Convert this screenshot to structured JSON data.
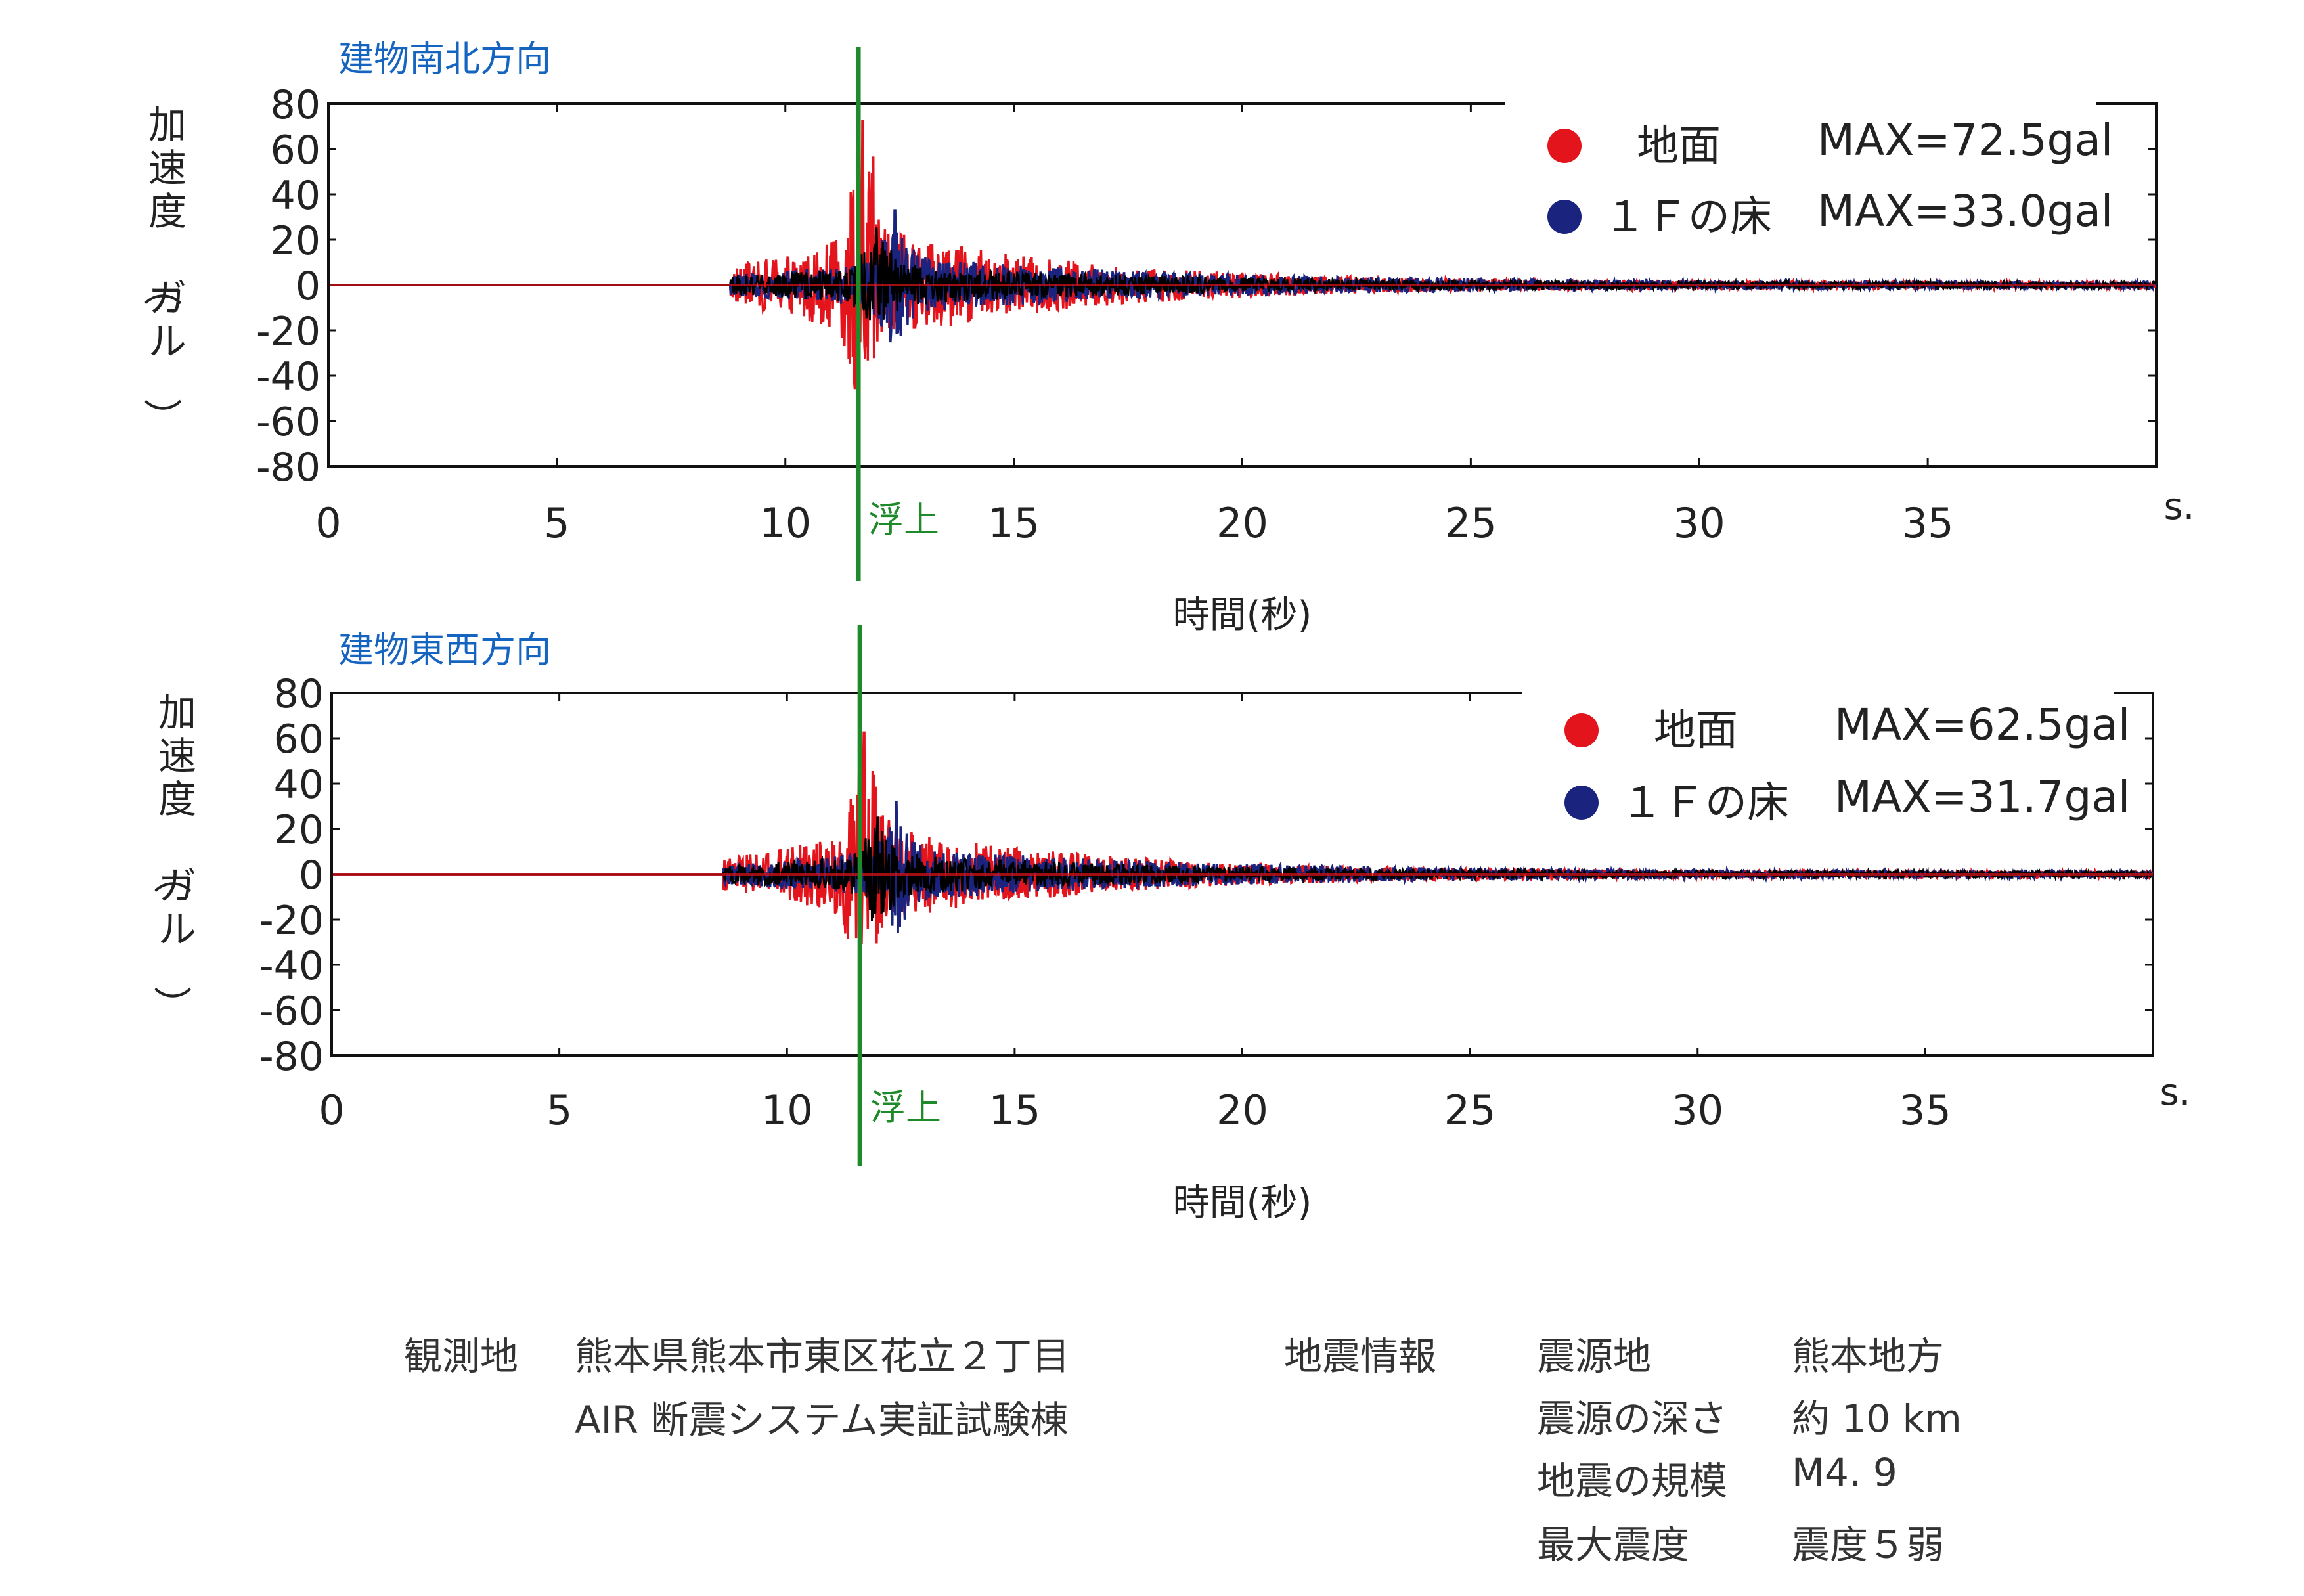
{
  "chart_data": [
    {
      "type": "line",
      "title": "建物南北方向",
      "xlabel": "時間(秒)",
      "ylabel": "加速度（ガル）",
      "x_unit": "s.",
      "xlim": [
        0,
        40
      ],
      "ylim": [
        -80,
        80
      ],
      "xticks": [
        0,
        5,
        10,
        15,
        20,
        25,
        30,
        35
      ],
      "yticks": [
        80,
        60,
        40,
        20,
        0,
        -20,
        -40,
        -60,
        -80
      ],
      "grid": false,
      "legend_position": "top-right",
      "annotation": {
        "x": 11.6,
        "label": "浮上",
        "color": "#1f8a2a"
      },
      "series": [
        {
          "name": "地面",
          "color": "#e3141b",
          "max_label": "MAX=72.5gal",
          "max": 72.5,
          "onset": 8.8,
          "peak_at": 11.7,
          "decay": 4.5
        },
        {
          "name": "１Ｆの床",
          "color": "#1a237e",
          "max_label": "MAX=33.0gal",
          "max": 33.0,
          "onset": 8.8,
          "peak_at": 12.4,
          "decay": 6.0
        },
        {
          "name": "",
          "color": "#000000",
          "max": 25,
          "onset": 8.8,
          "peak_at": 12.0,
          "decay": 5.0
        }
      ]
    },
    {
      "type": "line",
      "title": "建物東西方向",
      "xlabel": "時間(秒)",
      "ylabel": "加速度（ガル）",
      "x_unit": "s.",
      "xlim": [
        0,
        40
      ],
      "ylim": [
        -80,
        80
      ],
      "xticks": [
        0,
        5,
        10,
        15,
        20,
        25,
        30,
        35
      ],
      "yticks": [
        80,
        60,
        40,
        20,
        0,
        -20,
        -40,
        -60,
        -80
      ],
      "grid": false,
      "legend_position": "top-right",
      "annotation": {
        "x": 11.6,
        "label": "浮上",
        "color": "#1f8a2a"
      },
      "series": [
        {
          "name": "地面",
          "color": "#e3141b",
          "max_label": "MAX=62.5gal",
          "max": 62.5,
          "onset": 8.6,
          "peak_at": 11.7,
          "decay": 4.5
        },
        {
          "name": "１Ｆの床",
          "color": "#1a237e",
          "max_label": "MAX=31.7gal",
          "max": 31.7,
          "onset": 8.6,
          "peak_at": 12.4,
          "decay": 6.0
        },
        {
          "name": "",
          "color": "#000000",
          "max": 25,
          "onset": 8.6,
          "peak_at": 12.0,
          "decay": 5.0
        }
      ]
    }
  ],
  "info": {
    "location_label": "観測地",
    "location_value": "熊本県熊本市東区花立２丁目",
    "building_name": "AIR 断震システム実証試験棟",
    "quake_info_label": "地震情報",
    "epicenter_label": "震源地",
    "epicenter_value": "熊本地方",
    "depth_label": "震源の深さ",
    "depth_value": "約 10 km",
    "magnitude_label": "地震の規模",
    "magnitude_value": "M4. 9",
    "intensity_label": "最大震度",
    "intensity_value": "震度５弱"
  }
}
